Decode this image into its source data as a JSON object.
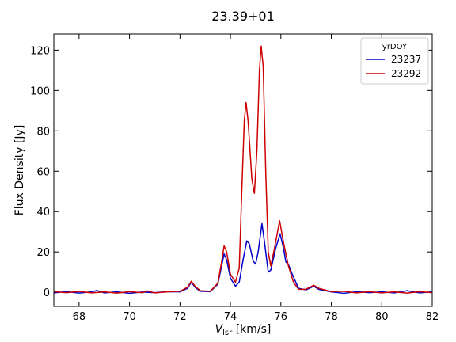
{
  "chart_data": {
    "type": "line",
    "title": "23.39+01",
    "xlabel_main": "V",
    "xlabel_sub": "lsr",
    "xlabel_unit": " [km/s]",
    "ylabel": "Flux Density [Jy]",
    "xlim": [
      67,
      82
    ],
    "ylim": [
      -7,
      128
    ],
    "xticks": [
      68,
      70,
      72,
      74,
      76,
      78,
      80,
      82
    ],
    "yticks": [
      0,
      20,
      40,
      60,
      80,
      100,
      120
    ],
    "legend": {
      "title": "yrDOY",
      "placement": "top-right"
    },
    "series": [
      {
        "name": "23237",
        "color": "#0000cc",
        "points": [
          [
            67.0,
            -0.3
          ],
          [
            67.5,
            0.3
          ],
          [
            68.0,
            -0.4
          ],
          [
            68.5,
            0.2
          ],
          [
            68.7,
            0.9
          ],
          [
            69.0,
            -0.3
          ],
          [
            69.5,
            0.2
          ],
          [
            70.0,
            -0.5
          ],
          [
            70.5,
            0.1
          ],
          [
            71.0,
            -0.2
          ],
          [
            71.5,
            0.3
          ],
          [
            72.0,
            0.2
          ],
          [
            72.3,
            2.0
          ],
          [
            72.45,
            5.0
          ],
          [
            72.6,
            2.5
          ],
          [
            72.8,
            0.5
          ],
          [
            73.2,
            0.3
          ],
          [
            73.5,
            4.0
          ],
          [
            73.65,
            13.0
          ],
          [
            73.75,
            19.0
          ],
          [
            73.85,
            16.0
          ],
          [
            74.0,
            7.0
          ],
          [
            74.2,
            3.0
          ],
          [
            74.35,
            5.0
          ],
          [
            74.5,
            16.0
          ],
          [
            74.65,
            25.5
          ],
          [
            74.75,
            24.0
          ],
          [
            74.9,
            15.5
          ],
          [
            75.0,
            14.0
          ],
          [
            75.1,
            20.0
          ],
          [
            75.25,
            34.0
          ],
          [
            75.35,
            25.0
          ],
          [
            75.5,
            10.0
          ],
          [
            75.6,
            11.0
          ],
          [
            75.8,
            22.0
          ],
          [
            75.97,
            29.0
          ],
          [
            76.1,
            22.0
          ],
          [
            76.2,
            15.0
          ],
          [
            76.3,
            13.8
          ],
          [
            76.45,
            9.0
          ],
          [
            76.7,
            2.0
          ],
          [
            77.0,
            1.2
          ],
          [
            77.3,
            3.0
          ],
          [
            77.5,
            1.5
          ],
          [
            78.0,
            0.2
          ],
          [
            78.5,
            -0.5
          ],
          [
            79.0,
            0.3
          ],
          [
            79.5,
            -0.2
          ],
          [
            80.0,
            0.2
          ],
          [
            80.5,
            -0.3
          ],
          [
            81.0,
            0.8
          ],
          [
            81.5,
            -0.3
          ],
          [
            82.0,
            0.2
          ]
        ]
      },
      {
        "name": "23292",
        "color": "#cc0000",
        "points": [
          [
            67.0,
            0.3
          ],
          [
            67.5,
            -0.2
          ],
          [
            68.0,
            0.4
          ],
          [
            68.5,
            -0.3
          ],
          [
            69.0,
            0.2
          ],
          [
            69.5,
            -0.4
          ],
          [
            70.0,
            0.3
          ],
          [
            70.5,
            -0.2
          ],
          [
            70.7,
            0.7
          ],
          [
            71.0,
            -0.3
          ],
          [
            71.5,
            0.2
          ],
          [
            72.0,
            0.5
          ],
          [
            72.3,
            2.5
          ],
          [
            72.45,
            5.5
          ],
          [
            72.6,
            3.0
          ],
          [
            72.8,
            0.8
          ],
          [
            73.2,
            0.5
          ],
          [
            73.5,
            4.5
          ],
          [
            73.65,
            15.0
          ],
          [
            73.75,
            23.0
          ],
          [
            73.85,
            20.0
          ],
          [
            74.0,
            9.0
          ],
          [
            74.2,
            5.0
          ],
          [
            74.35,
            12.0
          ],
          [
            74.45,
            50.0
          ],
          [
            74.55,
            85.0
          ],
          [
            74.62,
            94.0
          ],
          [
            74.7,
            85.0
          ],
          [
            74.85,
            56.0
          ],
          [
            74.95,
            49.0
          ],
          [
            75.05,
            70.0
          ],
          [
            75.15,
            110.0
          ],
          [
            75.22,
            122.0
          ],
          [
            75.3,
            112.0
          ],
          [
            75.4,
            60.0
          ],
          [
            75.5,
            20.0
          ],
          [
            75.6,
            13.0
          ],
          [
            75.75,
            22.0
          ],
          [
            75.95,
            35.5
          ],
          [
            76.1,
            25.0
          ],
          [
            76.3,
            13.0
          ],
          [
            76.5,
            5.0
          ],
          [
            76.7,
            1.5
          ],
          [
            77.0,
            1.5
          ],
          [
            77.3,
            3.5
          ],
          [
            77.5,
            2.0
          ],
          [
            78.0,
            0.3
          ],
          [
            78.5,
            0.5
          ],
          [
            79.0,
            -0.3
          ],
          [
            79.5,
            0.3
          ],
          [
            80.0,
            -0.3
          ],
          [
            80.5,
            0.2
          ],
          [
            81.0,
            -0.4
          ],
          [
            81.5,
            0.3
          ],
          [
            82.0,
            -0.2
          ]
        ]
      }
    ]
  }
}
